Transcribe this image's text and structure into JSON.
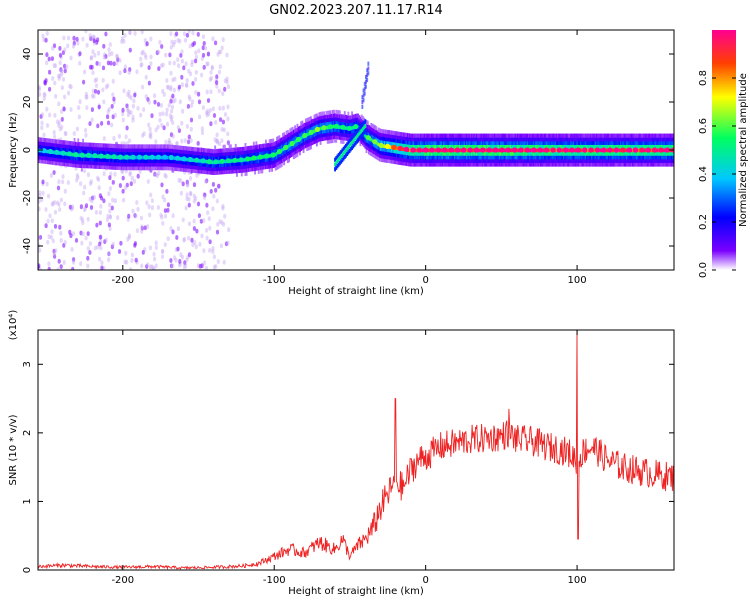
{
  "title": "GN02.2023.207.11.17.R14",
  "chart_data": [
    {
      "type": "heatmap",
      "name": "spectrogram",
      "xlabel": "Height of straight line (km)",
      "ylabel": "Frequency (Hz)",
      "xlim": [
        -256,
        164
      ],
      "ylim": [
        -50,
        50
      ],
      "x_ticks": [
        -200,
        -100,
        0,
        100
      ],
      "y_ticks": [
        -40,
        -20,
        0,
        20,
        40
      ],
      "colorbar": {
        "label": "Normalized spectral amplitude",
        "range": [
          0.0,
          1.0
        ],
        "ticks": [
          0.0,
          0.2,
          0.4,
          0.6,
          0.8
        ],
        "colormap": [
          "#ffffff",
          "#7a00ff",
          "#0000ff",
          "#00c8ff",
          "#00ff60",
          "#ffff00",
          "#ff4000",
          "#ff0090"
        ]
      },
      "ridge": {
        "x": [
          -256,
          -230,
          -200,
          -170,
          -140,
          -120,
          -100,
          -90,
          -80,
          -70,
          -60,
          -50,
          -45,
          -40,
          -35,
          -30,
          -20,
          -10,
          0,
          50,
          100,
          164
        ],
        "y": [
          0,
          -2,
          -3,
          -3,
          -5,
          -4,
          -2,
          2,
          6,
          9,
          10,
          9,
          10,
          6,
          4,
          2,
          1,
          0,
          0,
          0,
          0,
          0
        ],
        "amplitude": [
          0.35,
          0.45,
          0.4,
          0.35,
          0.45,
          0.45,
          0.5,
          0.5,
          0.5,
          0.55,
          0.5,
          0.45,
          0.45,
          0.5,
          0.55,
          0.6,
          0.75,
          0.9,
          0.95,
          0.95,
          0.9,
          0.9
        ]
      },
      "branches": [
        {
          "x": [
            -60,
            -50,
            -40
          ],
          "y": [
            -6,
            2,
            10
          ]
        },
        {
          "x": [
            -42,
            -38
          ],
          "y": [
            20,
            34
          ]
        }
      ],
      "noise_region_x": [
        -256,
        -130
      ]
    },
    {
      "type": "line",
      "name": "snr",
      "xlabel": "Height of straight line (km)",
      "ylabel": "SNR (10 * v/v)",
      "y_multiplier": "(x10⁴)",
      "xlim": [
        -256,
        164
      ],
      "ylim": [
        0,
        3.5
      ],
      "x_ticks": [
        -200,
        -100,
        0,
        100
      ],
      "y_ticks": [
        0,
        1,
        2,
        3
      ],
      "series": [
        {
          "color": "#ee2222",
          "x": [
            -256,
            -240,
            -220,
            -200,
            -180,
            -160,
            -140,
            -120,
            -110,
            -100,
            -90,
            -80,
            -70,
            -60,
            -55,
            -50,
            -45,
            -40,
            -35,
            -30,
            -25,
            -20,
            -15,
            -10,
            -5,
            0,
            10,
            20,
            30,
            40,
            50,
            55,
            60,
            70,
            80,
            90,
            95,
            100,
            105,
            110,
            120,
            130,
            140,
            150,
            164
          ],
          "values": [
            0.05,
            0.07,
            0.05,
            0.04,
            0.05,
            0.03,
            0.04,
            0.06,
            0.1,
            0.2,
            0.3,
            0.25,
            0.4,
            0.3,
            0.45,
            0.2,
            0.35,
            0.45,
            0.6,
            0.9,
            1.1,
            1.3,
            1.2,
            1.45,
            1.6,
            1.65,
            1.8,
            1.85,
            1.9,
            1.92,
            1.95,
            2.0,
            1.9,
            1.88,
            1.8,
            1.75,
            1.7,
            1.6,
            1.75,
            1.8,
            1.6,
            1.5,
            1.45,
            1.4,
            1.35
          ],
          "noise": 0.22,
          "spikes": [
            {
              "x": -20,
              "value": 2.5
            },
            {
              "x": 55,
              "value": 2.35
            },
            {
              "x": 100,
              "value": 3.5
            },
            {
              "x": 100.6,
              "value": 0.45
            }
          ]
        }
      ]
    }
  ]
}
